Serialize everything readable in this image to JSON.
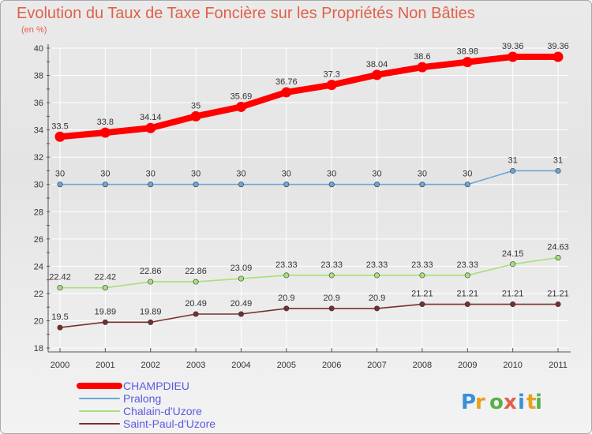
{
  "chart_data": {
    "type": "line",
    "title": "Evolution du Taux de Taxe Foncière sur les Propriétés Non Bâties",
    "ylabel": "(en %)",
    "xlabel": "",
    "ylim": [
      18,
      40
    ],
    "yticks": [
      "18",
      "20",
      "22",
      "24",
      "26",
      "28",
      "30",
      "32",
      "34",
      "36",
      "38",
      "40"
    ],
    "categories": [
      "2000",
      "2001",
      "2002",
      "2003",
      "2004",
      "2005",
      "2006",
      "2007",
      "2008",
      "2009",
      "2010",
      "2011"
    ],
    "series": [
      {
        "name": "CHAMPDIEU",
        "color": "#ff0000",
        "values": [
          33.5,
          33.8,
          34.14,
          35,
          35.69,
          36.76,
          37.3,
          38.04,
          38.6,
          38.98,
          39.36,
          39.36
        ],
        "labels": [
          "33.5",
          "33.8",
          "34.14",
          "35",
          "35.69",
          "36.76",
          "37.3",
          "38.04",
          "38.6",
          "38.98",
          "39.36",
          "39.36"
        ]
      },
      {
        "name": "Pralong",
        "color": "#6aa6d8",
        "values": [
          30,
          30,
          30,
          30,
          30,
          30,
          30,
          30,
          30,
          30,
          31,
          31
        ],
        "labels": [
          "30",
          "30",
          "30",
          "30",
          "30",
          "30",
          "30",
          "30",
          "30",
          "30",
          "31",
          "31"
        ]
      },
      {
        "name": "Chalain-d'Uzore",
        "color": "#a8e07a",
        "values": [
          22.42,
          22.42,
          22.86,
          22.86,
          23.09,
          23.33,
          23.33,
          23.33,
          23.33,
          23.33,
          24.15,
          24.63
        ],
        "labels": [
          "22.42",
          "22.42",
          "22.86",
          "22.86",
          "23.09",
          "23.33",
          "23.33",
          "23.33",
          "23.33",
          "23.33",
          "24.15",
          "24.63"
        ]
      },
      {
        "name": "Saint-Paul-d'Uzore",
        "color": "#7a2e2e",
        "values": [
          19.5,
          19.89,
          19.89,
          20.49,
          20.49,
          20.9,
          20.9,
          20.9,
          21.21,
          21.21,
          21.21,
          21.21
        ],
        "labels": [
          "19.5",
          "19.89",
          "19.89",
          "20.49",
          "20.49",
          "20.9",
          "20.9",
          "20.9",
          "21.21",
          "21.21",
          "21.21",
          "21.21"
        ]
      }
    ],
    "legend_position": "bottom-left",
    "logo_text": "Proxiti"
  },
  "colors": {
    "title": "#e0604a",
    "grid": "#ffffff",
    "axis": "#555555"
  }
}
